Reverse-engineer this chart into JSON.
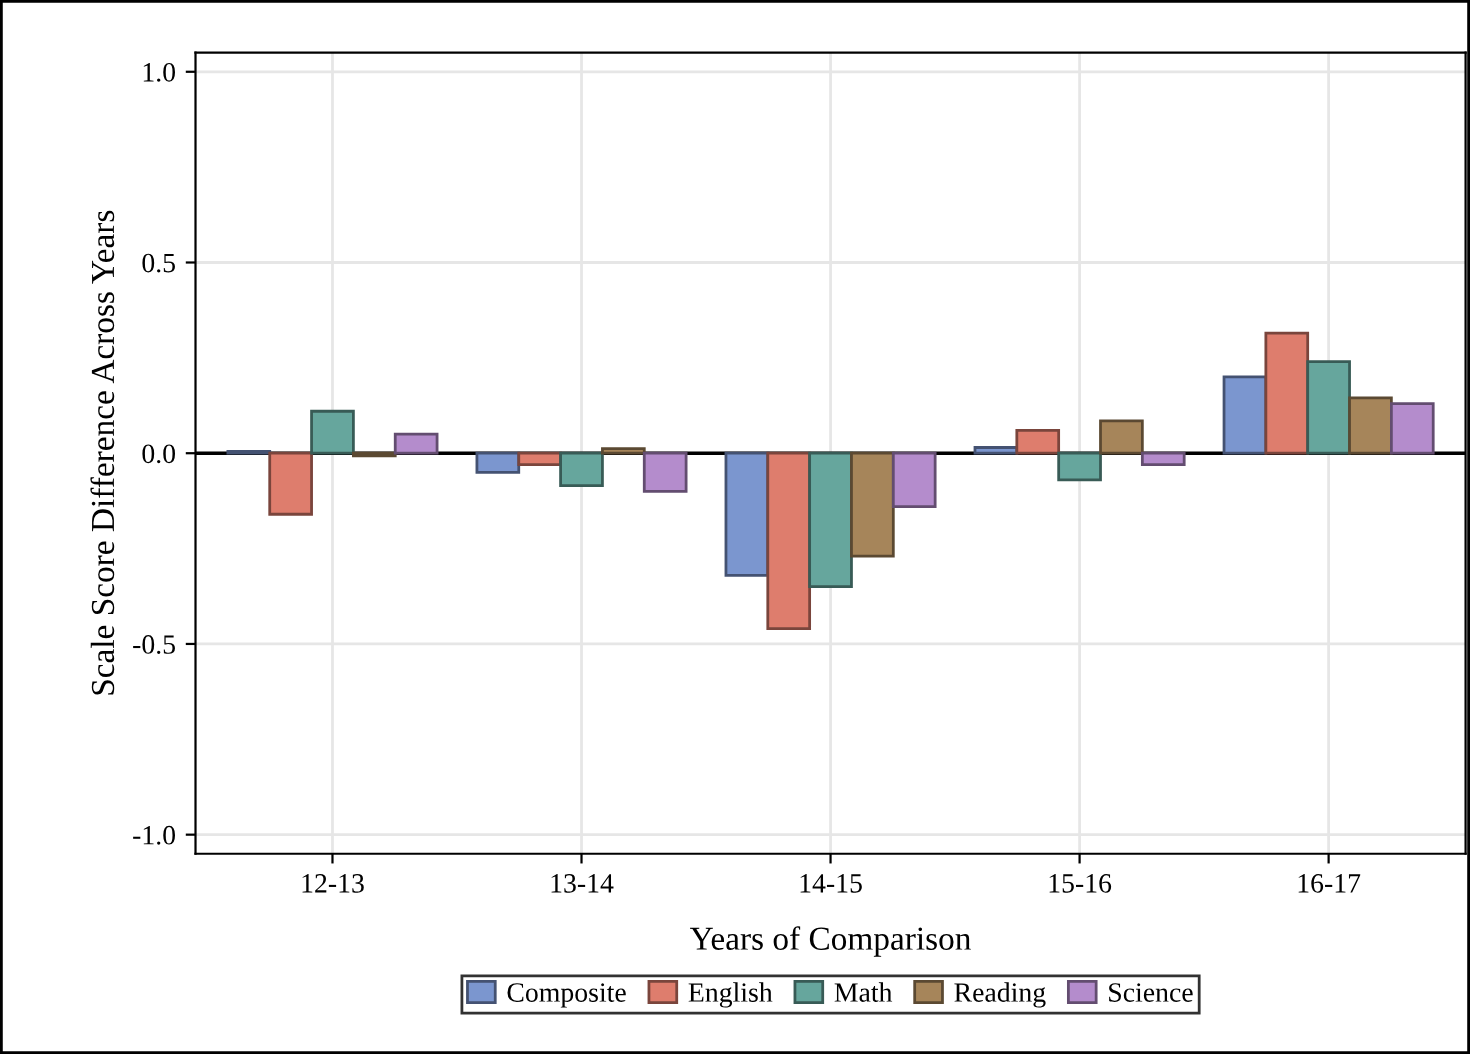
{
  "chart_data": {
    "type": "bar",
    "xlabel": "Years of Comparison",
    "ylabel": "Scale Score Difference Across Years",
    "categories": [
      "12-13",
      "13-14",
      "14-15",
      "15-16",
      "16-17"
    ],
    "series": [
      {
        "name": "Composite",
        "color": "#7b96cf",
        "values": [
          0.005,
          -0.05,
          -0.32,
          0.015,
          0.2
        ]
      },
      {
        "name": "English",
        "color": "#de7d6d",
        "values": [
          -0.16,
          -0.03,
          -0.46,
          0.06,
          0.315
        ]
      },
      {
        "name": "Math",
        "color": "#66a69d",
        "values": [
          0.11,
          -0.085,
          -0.35,
          -0.07,
          0.24
        ]
      },
      {
        "name": "Reading",
        "color": "#a6855a",
        "values": [
          -0.007,
          0.012,
          -0.27,
          0.085,
          0.145
        ]
      },
      {
        "name": "Science",
        "color": "#b48ccc",
        "values": [
          0.05,
          -0.1,
          -0.14,
          -0.03,
          0.13
        ]
      }
    ],
    "ylim": [
      -1.05,
      1.05
    ],
    "yticks": [
      {
        "value": -1,
        "label": "-1.0"
      },
      {
        "value": -0.5,
        "label": "-0.5"
      },
      {
        "value": 0,
        "label": "0.0"
      },
      {
        "value": 0.5,
        "label": "0.5"
      },
      {
        "value": 1,
        "label": "1.0"
      }
    ],
    "ref_lines": [
      {
        "axis": "y",
        "value": 0,
        "color": "#000000"
      }
    ],
    "grid": true,
    "legend": "bottom"
  }
}
